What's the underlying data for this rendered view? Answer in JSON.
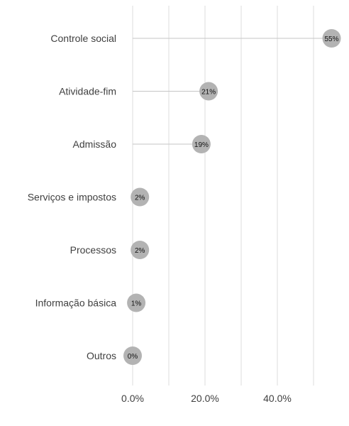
{
  "chart_data": {
    "type": "lollipop",
    "orientation": "horizontal",
    "categories": [
      "Controle social",
      "Atividade-fim",
      "Admissão",
      "Serviços e impostos",
      "Processos",
      "Informação básica",
      "Outros"
    ],
    "values": [
      55,
      21,
      19,
      2,
      2,
      1,
      0
    ],
    "value_labels": [
      "55%",
      "21%",
      "19%",
      "2%",
      "2%",
      "1%",
      "0%"
    ],
    "x_ticks": [
      0,
      20,
      40
    ],
    "x_tick_labels": [
      "0.0%",
      "20.0%",
      "40.0%"
    ],
    "x_gridlines": [
      0,
      10,
      20,
      30,
      40,
      50
    ],
    "xlim": [
      0,
      55
    ],
    "grid": "vertical",
    "title": "",
    "xlabel": "",
    "ylabel": "",
    "colors": {
      "point": "#b3b3b3",
      "stem": "#c6c6c6",
      "grid": "#dcdcdc"
    }
  }
}
